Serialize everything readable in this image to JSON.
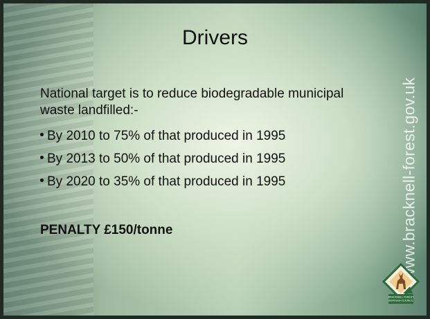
{
  "slide": {
    "title": "Drivers",
    "intro": "National target is to reduce biodegradable municipal waste landfilled:-",
    "bullets": [
      "By 2010 to 75% of that produced in 1995",
      "By 2013 to 50% of that produced in 1995",
      "By 2020 to 35% of that produced in 1995"
    ],
    "penalty": "PENALTY £150/tonne",
    "side_url": "www.bracknell-forest.gov.uk",
    "logo_text": [
      "BRACKNELL FOREST",
      "BOROUGH COUNCIL"
    ]
  }
}
